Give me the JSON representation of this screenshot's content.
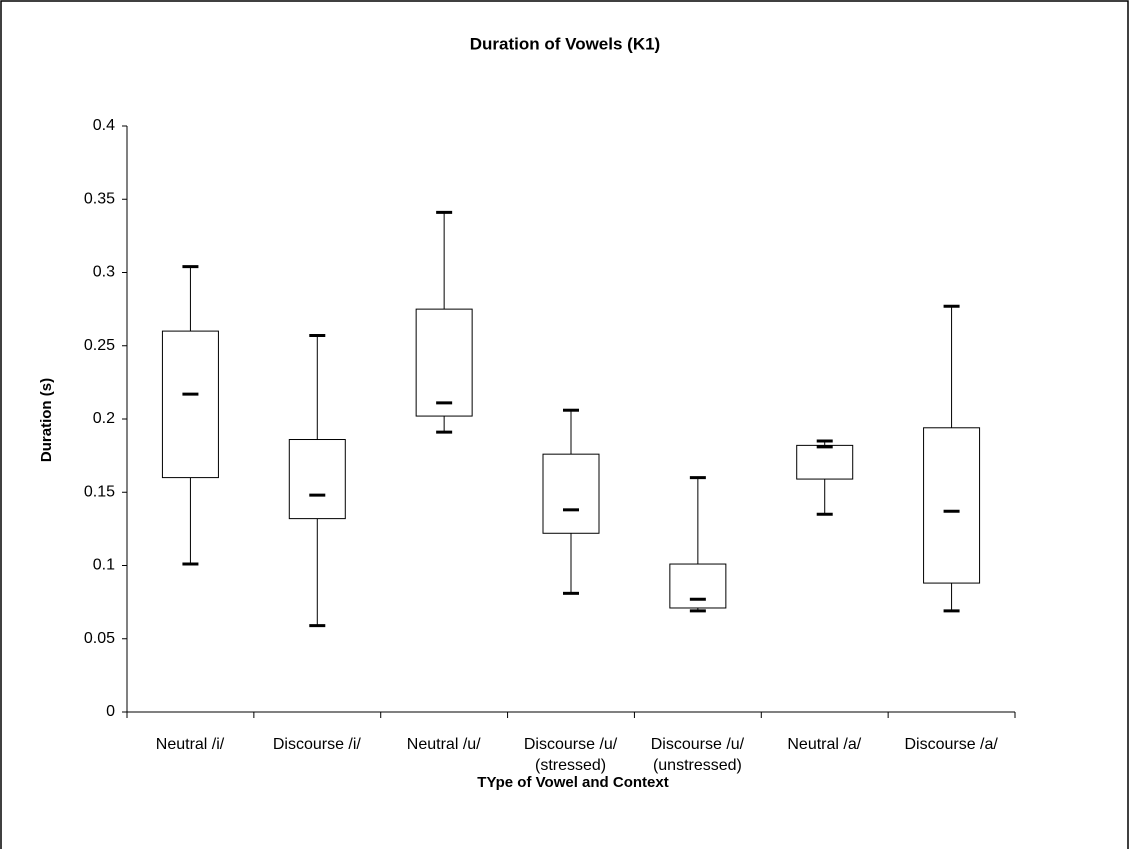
{
  "chart_data": {
    "type": "box",
    "title": "Duration of Vowels (K1)",
    "x_label": "TYpe of Vowel and Context",
    "y_label": "Duration (s)",
    "categories": [
      "Neutral /i/",
      "Discourse /i/",
      "Neutral /u/",
      "Discourse /u/\n(stressed)",
      "Discourse /u/\n(unstressed)",
      "Neutral /a/",
      "Discourse /a/"
    ],
    "values": [
      {
        "min": 0.101,
        "q1": 0.16,
        "median": 0.217,
        "q3": 0.26,
        "max": 0.304
      },
      {
        "min": 0.059,
        "q1": 0.132,
        "median": 0.148,
        "q3": 0.186,
        "max": 0.257
      },
      {
        "min": 0.191,
        "q1": 0.202,
        "median": 0.211,
        "q3": 0.275,
        "max": 0.341
      },
      {
        "min": 0.081,
        "q1": 0.122,
        "median": 0.138,
        "q3": 0.176,
        "max": 0.206
      },
      {
        "min": 0.069,
        "q1": 0.071,
        "median": 0.077,
        "q3": 0.101,
        "max": 0.16
      },
      {
        "min": 0.135,
        "q1": 0.159,
        "median": 0.181,
        "q3": 0.182,
        "max": 0.185
      },
      {
        "min": 0.069,
        "q1": 0.088,
        "median": 0.137,
        "q3": 0.194,
        "max": 0.277
      }
    ],
    "ylim": [
      0,
      0.4
    ],
    "yticks": [
      0,
      0.05,
      0.1,
      0.15,
      0.2,
      0.25,
      0.3,
      0.35,
      0.4
    ],
    "color": "#000000",
    "grid": false
  }
}
